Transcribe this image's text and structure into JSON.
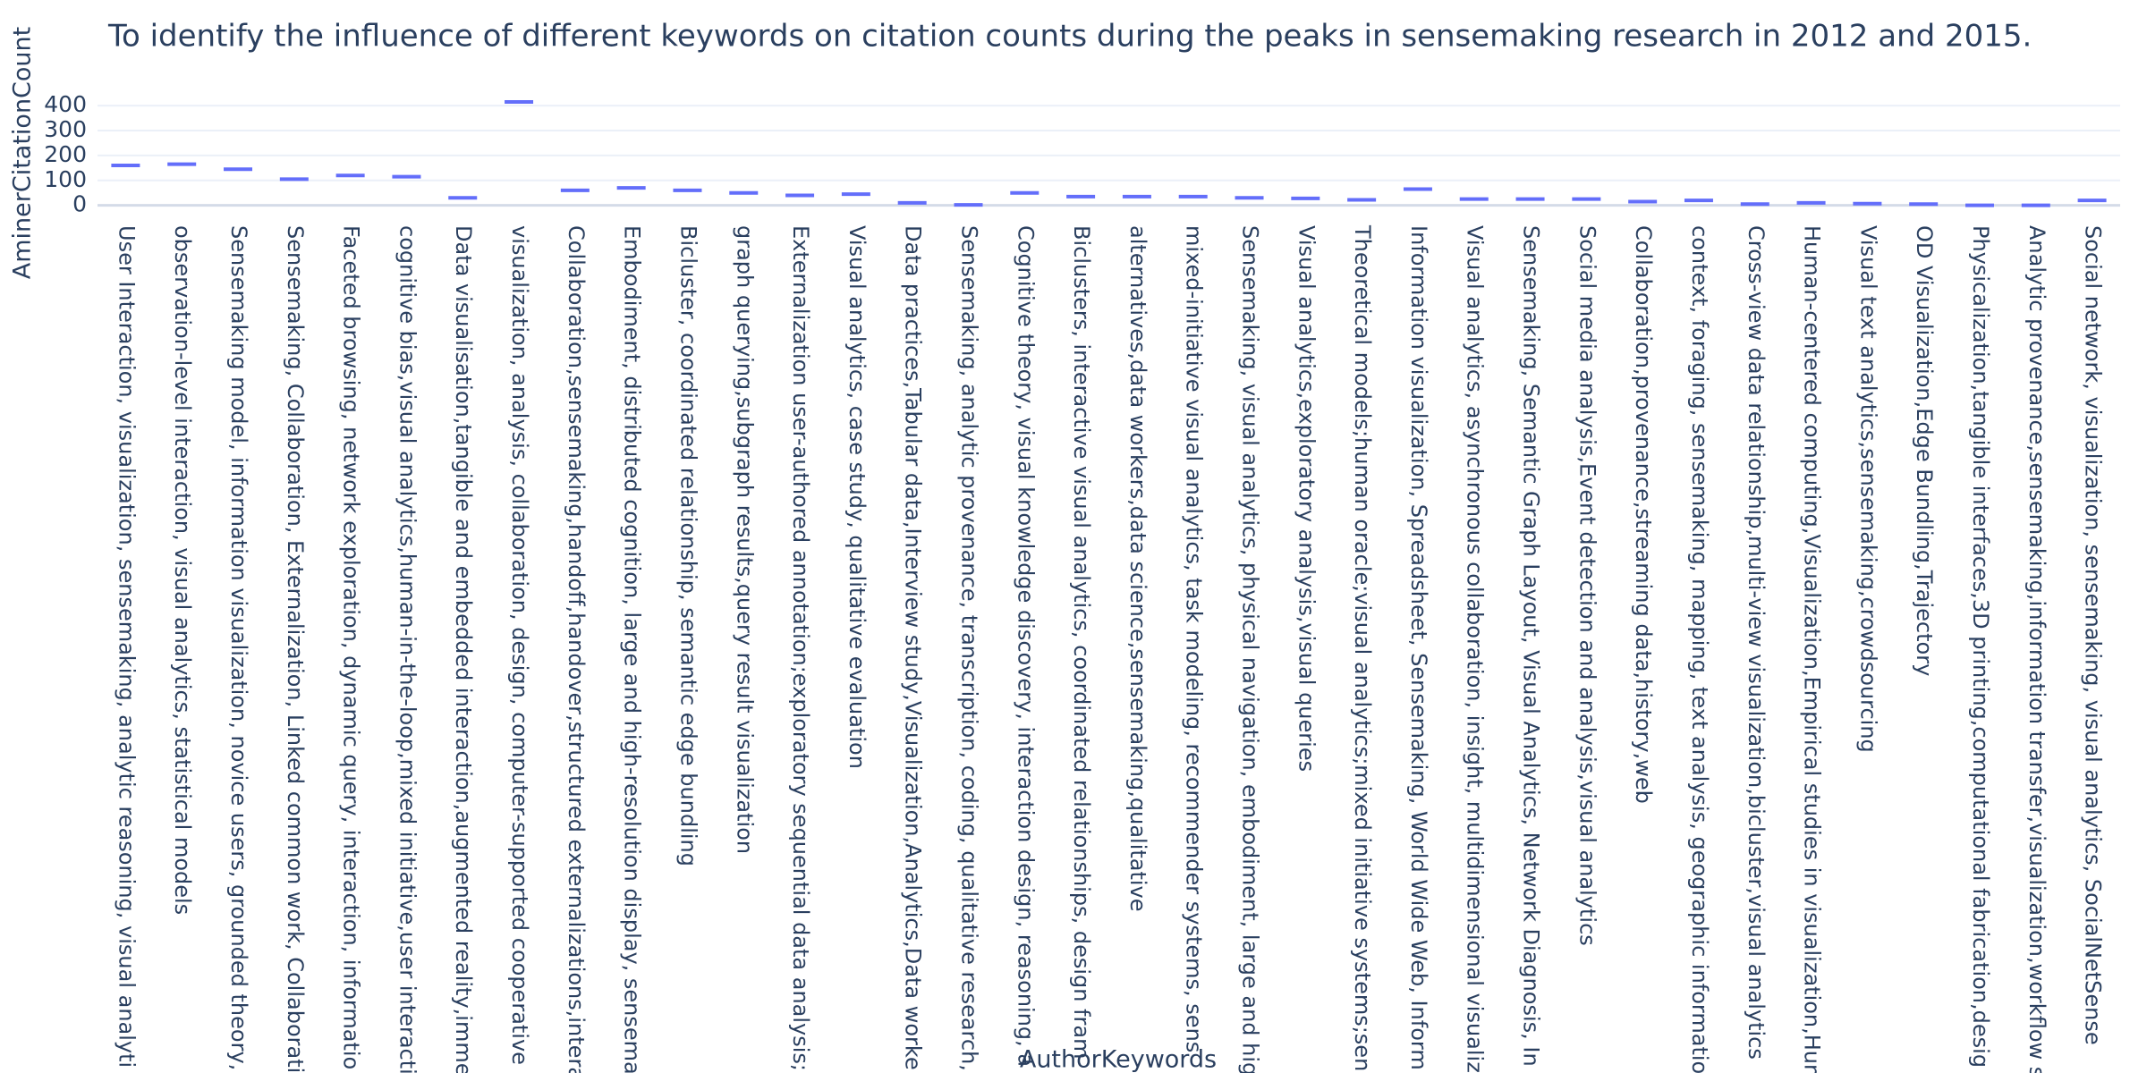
{
  "chart_data": {
    "type": "box",
    "title": "To identify the influence of different keywords on citation counts during the peaks in sensemaking research in 2012 and 2015.",
    "x_label": "AuthorKeywords",
    "y_label": "AminerCitationCount",
    "color": "#636efa",
    "ylim": [
      -12,
      440
    ],
    "yticks": [
      0,
      100,
      200,
      300,
      400
    ],
    "grid": true,
    "categories": [
      "User Interaction, visualization, sensemaking, analytic reasoning, visual analyti",
      "observation-level interaction, visual analytics, statistical models",
      "Sensemaking model, information visualization, novice users, grounded theory,",
      "Sensemaking, Collaboration, Externalization, Linked common work, Collaborati",
      "Faceted browsing, network exploration, dynamic query, interaction, informatio",
      "cognitive bias,visual analytics,human-in-the-loop,mixed initiative,user interacti",
      "Data visualisation,tangible and embedded interaction,augmented reality,imme",
      "visualization, analysis, collaboration, design, computer-supported cooperative",
      "Collaboration,sensemaking,handoff,handover,structured externalizations,intera",
      "Embodiment, distributed cognition, large and high-resolution display, sensema",
      "Bicluster, coordinated relationship, semantic edge bundling",
      "graph querying,subgraph results,query result visualization",
      "Externalization user-authored annotation;exploratory sequential data analysis;",
      "Visual analytics, case study, qualitative evaluation",
      "Data practices,Tabular data,Interview study,Visualization,Analytics,Data worke",
      "Sensemaking, analytic provenance, transcription, coding, qualitative research,",
      "Cognitive theory, visual knowledge discovery, interaction design, reasoning, a",
      "Biclusters, interactive visual analytics, coordinated relationships, design fram",
      "alternatives,data workers,data science,sensemaking,qualitative",
      "mixed-initiative visual analytics, task modeling, recommender systems, sens",
      "Sensemaking, visual analytics, physical navigation, embodiment, large and hig",
      "Visual analytics,exploratory analysis,visual queries",
      "Theoretical models;human oracle;visual analytics;mixed initiative systems;sen",
      "Information visualization, Spreadsheet, Sensemaking, World Wide Web, Inform",
      "Visual analytics, asynchronous collaboration, insight, multidimensional visualiz",
      "Sensemaking, Semantic Graph Layout, Visual Analytics, Network Diagnosis, In",
      "Social media analysis,Event detection and analysis,visual analytics",
      "Collaboration,provenance,streaming data,history,web",
      "context, foraging, sensemaking, mapping, text analysis, geographic informatio",
      "Cross-view data relationship,multi-view visualization,bicluster,visual analytics",
      "Human-centered computing,Visualization,Empirical studies in visualization,Hun",
      "Visual text analytics,sensemaking,crowdsourcing",
      "OD Visualization,Edge Bundling,Trajectory",
      "Physicalization,tangible interfaces,3D printing,computational fabrication,desig",
      "Analytic provenance,sensemaking,information transfer,visualization,workflow s",
      "Social network, visualization, sensemaking, visual analytics, SocialNetSense"
    ],
    "values": [
      160,
      165,
      145,
      105,
      120,
      115,
      30,
      415,
      60,
      70,
      60,
      50,
      40,
      45,
      10,
      2,
      50,
      35,
      35,
      35,
      30,
      28,
      22,
      65,
      25,
      25,
      25,
      15,
      20,
      5,
      10,
      7,
      5,
      0,
      0,
      20
    ]
  }
}
